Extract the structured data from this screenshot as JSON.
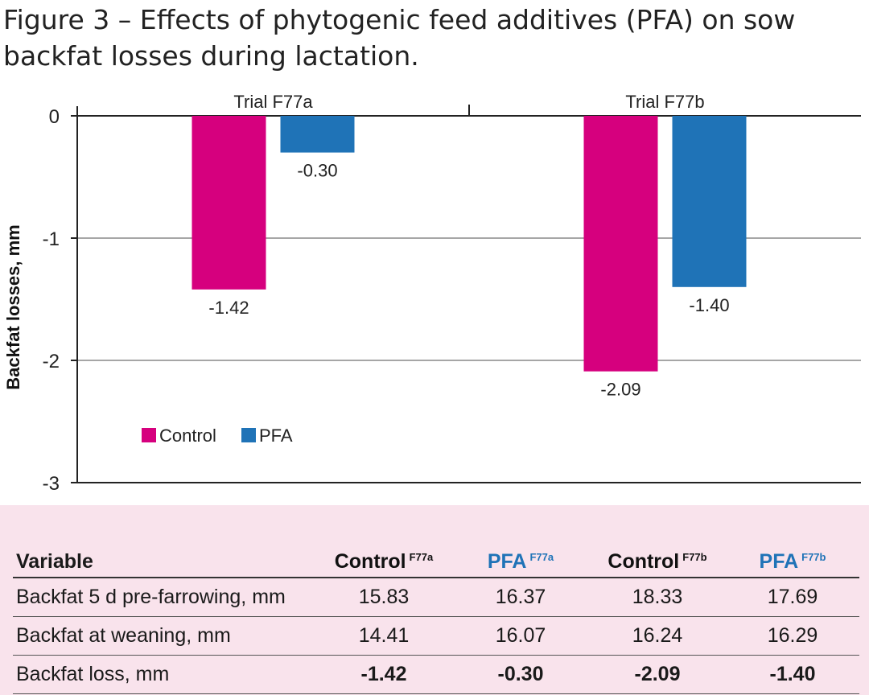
{
  "title": "Figure 3 – Effects of phytogenic feed additives (PFA) on sow backfat losses during lactation.",
  "chart_data": {
    "type": "bar",
    "categories": [
      "Trial F77a",
      "Trial F77b"
    ],
    "series": [
      {
        "name": "Control",
        "color": "#d6007e",
        "values": [
          -1.42,
          -2.09
        ],
        "labels": [
          "-1.42",
          "-2.09"
        ]
      },
      {
        "name": "PFA",
        "color": "#1f73b7",
        "values": [
          -0.3,
          -1.4
        ],
        "labels": [
          "-0.30",
          "-1.40"
        ]
      }
    ],
    "ylabel": "Backfat losses, mm",
    "ylim": [
      -3,
      0
    ],
    "yticks": [
      0,
      -1,
      -2,
      -3
    ],
    "ytick_labels": [
      "0",
      "-1",
      "-2",
      "-3"
    ],
    "grid": true,
    "legend": "bottom-left",
    "x_axis_position": "top"
  },
  "table": {
    "headers": [
      {
        "text": "Variable",
        "sup": ""
      },
      {
        "text": "Control",
        "sup": "F77a"
      },
      {
        "text": "PFA",
        "sup": "F77a"
      },
      {
        "text": "Control",
        "sup": "F77b"
      },
      {
        "text": "PFA",
        "sup": "F77b"
      }
    ],
    "rows": [
      [
        "Backfat 5 d pre-farrowing, mm",
        "15.83",
        "16.37",
        "18.33",
        "17.69"
      ],
      [
        "Backfat at weaning, mm",
        "14.41",
        "16.07",
        "16.24",
        "16.29"
      ],
      [
        "Backfat loss, mm",
        "-1.42",
        "-0.30",
        "-2.09",
        "-1.40"
      ]
    ]
  }
}
